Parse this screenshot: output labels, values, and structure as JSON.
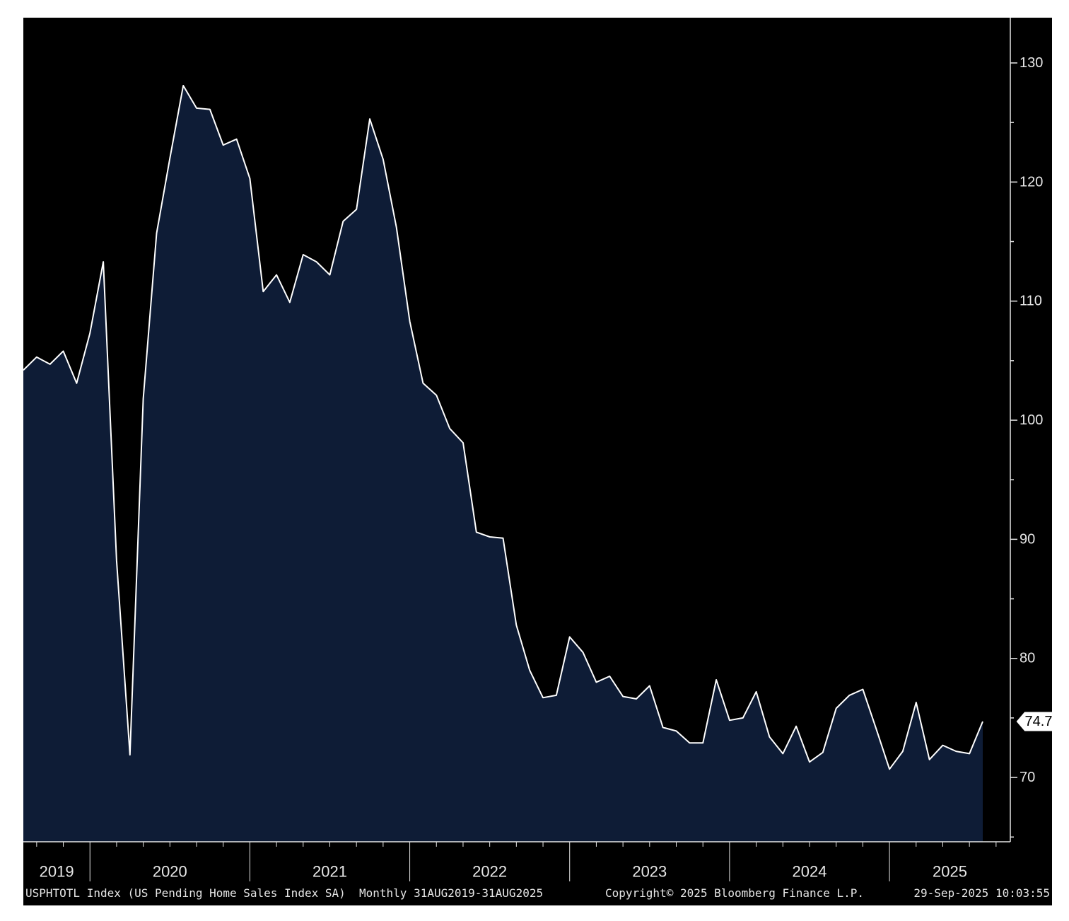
{
  "chart_data": {
    "type": "area",
    "x_start": "2019-08",
    "x_end": "2025-08",
    "frequency": "monthly",
    "values": [
      104.2,
      105.3,
      104.7,
      105.8,
      103.1,
      107.3,
      113.3,
      88.2,
      71.9,
      101.8,
      115.7,
      122.0,
      128.1,
      126.2,
      126.1,
      123.1,
      123.6,
      120.3,
      110.8,
      112.2,
      109.9,
      113.9,
      113.3,
      112.2,
      116.7,
      117.7,
      125.3,
      121.9,
      116.2,
      108.3,
      103.1,
      102.1,
      99.3,
      98.1,
      90.6,
      90.2,
      90.1,
      82.8,
      79.0,
      76.7,
      76.9,
      81.8,
      80.5,
      78.0,
      78.5,
      76.8,
      76.6,
      77.7,
      74.2,
      73.9,
      72.9,
      72.9,
      78.2,
      74.8,
      75.0,
      77.2,
      73.4,
      72.0,
      74.3,
      71.3,
      72.1,
      75.8,
      76.9,
      77.4,
      74.1,
      70.7,
      72.2,
      76.3,
      71.5,
      72.7,
      72.2,
      72.0,
      74.7
    ],
    "year_labels": [
      "2019",
      "2020",
      "2021",
      "2022",
      "2023",
      "2024",
      "2025"
    ],
    "y_ticks": [
      "70",
      "80",
      "90",
      "100",
      "110",
      "120",
      "130"
    ],
    "ylim": [
      64.6,
      133.8
    ],
    "last_value_label": "74.7",
    "grid": false,
    "colors": {
      "background": "#000000",
      "area_fill": "#0e1c36",
      "line": "#ffffff",
      "text": "#e6e6e6"
    }
  },
  "footer": {
    "left": "USPHTOTL Index (US Pending Home Sales Index SA)  Monthly 31AUG2019-31AUG2025",
    "center": "Copyright© 2025 Bloomberg Finance L.P.",
    "right": "29-Sep-2025 10:03:55"
  }
}
